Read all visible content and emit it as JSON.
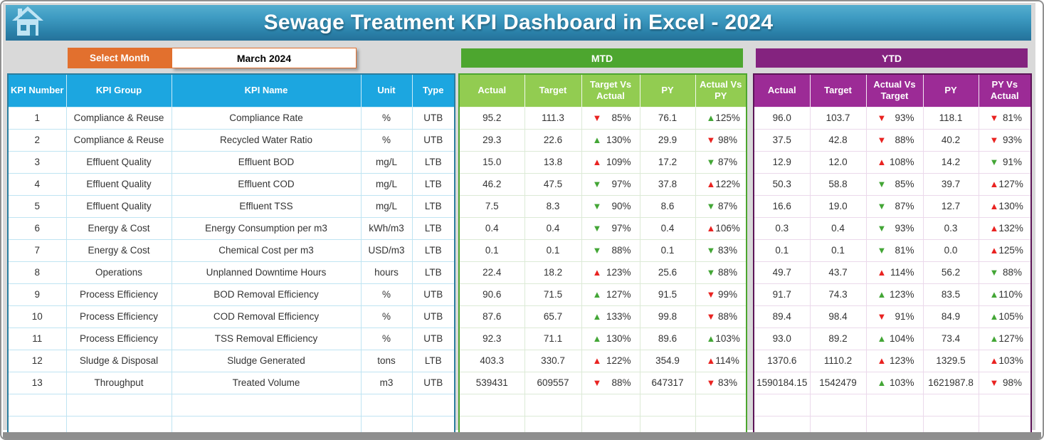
{
  "header": {
    "title": "Sewage Treatment KPI Dashboard in Excel - 2024"
  },
  "controls": {
    "select_month_label": "Select Month",
    "selected_month": "March 2024"
  },
  "colors": {
    "title_bar_blue": "#3E9BC2",
    "accent_orange": "#E2702E",
    "kpi_header_blue": "#1CA6E0",
    "mtd_green": "#4DA62F",
    "mtd_light_green": "#92CC51",
    "ytd_purple": "#84237F",
    "ytd_light_purple": "#9C2B96",
    "arrow_good_green": "#43A636",
    "arrow_bad_red": "#E92321"
  },
  "kpi_table": {
    "headers": [
      "KPI Number",
      "KPI Group",
      "KPI Name",
      "Unit",
      "Type"
    ],
    "rows": [
      [
        "1",
        "Compliance & Reuse",
        "Compliance Rate",
        "%",
        "UTB"
      ],
      [
        "2",
        "Compliance & Reuse",
        "Recycled Water Ratio",
        "%",
        "UTB"
      ],
      [
        "3",
        "Effluent Quality",
        "Effluent BOD",
        "mg/L",
        "LTB"
      ],
      [
        "4",
        "Effluent Quality",
        "Effluent COD",
        "mg/L",
        "LTB"
      ],
      [
        "5",
        "Effluent Quality",
        "Effluent TSS",
        "mg/L",
        "LTB"
      ],
      [
        "6",
        "Energy & Cost",
        "Energy Consumption per m3",
        "kWh/m3",
        "LTB"
      ],
      [
        "7",
        "Energy & Cost",
        "Chemical Cost per m3",
        "USD/m3",
        "LTB"
      ],
      [
        "8",
        "Operations",
        "Unplanned Downtime Hours",
        "hours",
        "LTB"
      ],
      [
        "9",
        "Process Efficiency",
        "BOD Removal Efficiency",
        "%",
        "UTB"
      ],
      [
        "10",
        "Process Efficiency",
        "COD Removal Efficiency",
        "%",
        "UTB"
      ],
      [
        "11",
        "Process Efficiency",
        "TSS Removal Efficiency",
        "%",
        "UTB"
      ],
      [
        "12",
        "Sludge & Disposal",
        "Sludge Generated",
        "tons",
        "LTB"
      ],
      [
        "13",
        "Throughput",
        "Treated Volume",
        "m3",
        "UTB"
      ]
    ],
    "empty_rows": 2
  },
  "mtd_table": {
    "title": "MTD",
    "headers": [
      "Actual",
      "Target",
      "Target Vs Actual",
      "PY",
      "Actual Vs PY"
    ],
    "rows": [
      [
        "95.2",
        "111.3",
        {
          "arrow": "down",
          "tone": "red",
          "value": "85%"
        },
        "76.1",
        {
          "arrow": "up",
          "tone": "green",
          "value": "125%"
        }
      ],
      [
        "29.3",
        "22.6",
        {
          "arrow": "up",
          "tone": "green",
          "value": "130%"
        },
        "29.9",
        {
          "arrow": "down",
          "tone": "red",
          "value": "98%"
        }
      ],
      [
        "15.0",
        "13.8",
        {
          "arrow": "up",
          "tone": "red",
          "value": "109%"
        },
        "17.2",
        {
          "arrow": "down",
          "tone": "green",
          "value": "87%"
        }
      ],
      [
        "46.2",
        "47.5",
        {
          "arrow": "down",
          "tone": "green",
          "value": "97%"
        },
        "37.8",
        {
          "arrow": "up",
          "tone": "red",
          "value": "122%"
        }
      ],
      [
        "7.5",
        "8.3",
        {
          "arrow": "down",
          "tone": "green",
          "value": "90%"
        },
        "8.6",
        {
          "arrow": "down",
          "tone": "green",
          "value": "87%"
        }
      ],
      [
        "0.4",
        "0.4",
        {
          "arrow": "down",
          "tone": "green",
          "value": "97%"
        },
        "0.4",
        {
          "arrow": "up",
          "tone": "red",
          "value": "106%"
        }
      ],
      [
        "0.1",
        "0.1",
        {
          "arrow": "down",
          "tone": "green",
          "value": "88%"
        },
        "0.1",
        {
          "arrow": "down",
          "tone": "green",
          "value": "83%"
        }
      ],
      [
        "22.4",
        "18.2",
        {
          "arrow": "up",
          "tone": "red",
          "value": "123%"
        },
        "25.6",
        {
          "arrow": "down",
          "tone": "green",
          "value": "88%"
        }
      ],
      [
        "90.6",
        "71.5",
        {
          "arrow": "up",
          "tone": "green",
          "value": "127%"
        },
        "91.5",
        {
          "arrow": "down",
          "tone": "red",
          "value": "99%"
        }
      ],
      [
        "87.6",
        "65.7",
        {
          "arrow": "up",
          "tone": "green",
          "value": "133%"
        },
        "99.8",
        {
          "arrow": "down",
          "tone": "red",
          "value": "88%"
        }
      ],
      [
        "92.3",
        "71.1",
        {
          "arrow": "up",
          "tone": "green",
          "value": "130%"
        },
        "89.6",
        {
          "arrow": "up",
          "tone": "green",
          "value": "103%"
        }
      ],
      [
        "403.3",
        "330.7",
        {
          "arrow": "up",
          "tone": "red",
          "value": "122%"
        },
        "354.9",
        {
          "arrow": "up",
          "tone": "red",
          "value": "114%"
        }
      ],
      [
        "539431",
        "609557",
        {
          "arrow": "down",
          "tone": "red",
          "value": "88%"
        },
        "647317",
        {
          "arrow": "down",
          "tone": "red",
          "value": "83%"
        }
      ]
    ],
    "empty_rows": 2
  },
  "ytd_table": {
    "title": "YTD",
    "headers": [
      "Actual",
      "Target",
      "Actual Vs Target",
      "PY",
      "PY Vs Actual"
    ],
    "rows": [
      [
        "96.0",
        "103.7",
        {
          "arrow": "down",
          "tone": "red",
          "value": "93%"
        },
        "118.1",
        {
          "arrow": "down",
          "tone": "red",
          "value": "81%"
        }
      ],
      [
        "37.5",
        "42.8",
        {
          "arrow": "down",
          "tone": "red",
          "value": "88%"
        },
        "40.2",
        {
          "arrow": "down",
          "tone": "red",
          "value": "93%"
        }
      ],
      [
        "12.9",
        "12.0",
        {
          "arrow": "up",
          "tone": "red",
          "value": "108%"
        },
        "14.2",
        {
          "arrow": "down",
          "tone": "green",
          "value": "91%"
        }
      ],
      [
        "50.3",
        "58.8",
        {
          "arrow": "down",
          "tone": "green",
          "value": "85%"
        },
        "39.7",
        {
          "arrow": "up",
          "tone": "red",
          "value": "127%"
        }
      ],
      [
        "16.6",
        "19.0",
        {
          "arrow": "down",
          "tone": "green",
          "value": "87%"
        },
        "12.7",
        {
          "arrow": "up",
          "tone": "red",
          "value": "130%"
        }
      ],
      [
        "0.3",
        "0.4",
        {
          "arrow": "down",
          "tone": "green",
          "value": "93%"
        },
        "0.3",
        {
          "arrow": "up",
          "tone": "red",
          "value": "132%"
        }
      ],
      [
        "0.1",
        "0.1",
        {
          "arrow": "down",
          "tone": "green",
          "value": "81%"
        },
        "0.0",
        {
          "arrow": "up",
          "tone": "red",
          "value": "125%"
        }
      ],
      [
        "49.7",
        "43.7",
        {
          "arrow": "up",
          "tone": "red",
          "value": "114%"
        },
        "56.2",
        {
          "arrow": "down",
          "tone": "green",
          "value": "88%"
        }
      ],
      [
        "91.7",
        "74.3",
        {
          "arrow": "up",
          "tone": "green",
          "value": "123%"
        },
        "83.5",
        {
          "arrow": "up",
          "tone": "green",
          "value": "110%"
        }
      ],
      [
        "89.4",
        "98.4",
        {
          "arrow": "down",
          "tone": "red",
          "value": "91%"
        },
        "84.9",
        {
          "arrow": "up",
          "tone": "green",
          "value": "105%"
        }
      ],
      [
        "93.0",
        "89.2",
        {
          "arrow": "up",
          "tone": "green",
          "value": "104%"
        },
        "73.4",
        {
          "arrow": "up",
          "tone": "green",
          "value": "127%"
        }
      ],
      [
        "1370.6",
        "1110.2",
        {
          "arrow": "up",
          "tone": "red",
          "value": "123%"
        },
        "1329.5",
        {
          "arrow": "up",
          "tone": "red",
          "value": "103%"
        }
      ],
      [
        "1590184.15",
        "1542479",
        {
          "arrow": "up",
          "tone": "green",
          "value": "103%"
        },
        "1621987.8",
        {
          "arrow": "down",
          "tone": "red",
          "value": "98%"
        }
      ]
    ],
    "empty_rows": 2
  }
}
